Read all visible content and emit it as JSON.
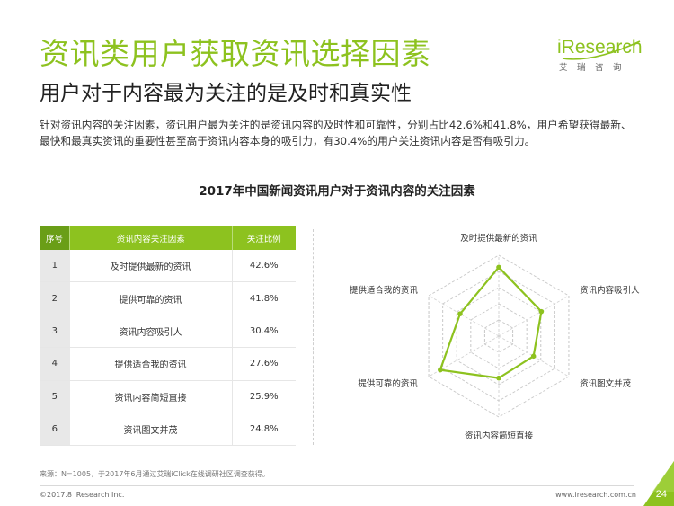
{
  "page": {
    "title": "资讯类用户获取资讯选择因素",
    "subtitle": "用户对于内容最为关注的是及时和真实性",
    "summary": "针对资讯内容的关注因素，资讯用户最为关注的是资讯内容的及时性和可靠性，分别占比42.6%和41.8%，用户希望获得最新、最快和最真实资讯的重要性甚至高于资讯内容本身的吸引力，有30.4%的用户关注资讯内容是否有吸引力。",
    "chart_title": "2017年中国新闻资讯用户对于资讯内容的关注因素",
    "source": "来源：N=1005，于2017年6月通过艾瑞iClick在线调研社区调查获得。",
    "copyright": "©2017.8 iResearch Inc.",
    "url": "www.iresearch.com.cn",
    "page_number": "24"
  },
  "logo": {
    "brand_i": "i",
    "brand_rest": "Research",
    "sub": "艾瑞咨询",
    "color": "#8dc21f"
  },
  "table": {
    "headers": [
      "序号",
      "资讯内容关注因素",
      "关注比例"
    ],
    "rows": [
      {
        "idx": "1",
        "factor": "及时提供最新的资讯",
        "pct": "42.6%"
      },
      {
        "idx": "2",
        "factor": "提供可靠的资讯",
        "pct": "41.8%"
      },
      {
        "idx": "3",
        "factor": "资讯内容吸引人",
        "pct": "30.4%"
      },
      {
        "idx": "4",
        "factor": "提供适合我的资讯",
        "pct": "27.6%"
      },
      {
        "idx": "5",
        "factor": "资讯内容简短直接",
        "pct": "25.9%"
      },
      {
        "idx": "6",
        "factor": "资讯图文并茂",
        "pct": "24.8%"
      }
    ]
  },
  "colors": {
    "accent": "#8dc21f",
    "header_dark": "#6a9e17",
    "footer_triangle": "#8dc21f"
  },
  "chart_data": {
    "type": "radar",
    "title": "2017年中国新闻资讯用户对于资讯内容的关注因素",
    "unit": "%",
    "categories": [
      "及时提供最新的资讯",
      "资讯内容吸引人",
      "资讯图文并茂",
      "资讯内容简短直接",
      "提供可靠的资讯",
      "提供适合我的资讯"
    ],
    "values": [
      42.6,
      30.4,
      24.8,
      25.9,
      41.8,
      27.6
    ],
    "range": [
      0,
      50
    ],
    "grid": "dashed-hexagon",
    "line_color": "#8dc21f"
  }
}
